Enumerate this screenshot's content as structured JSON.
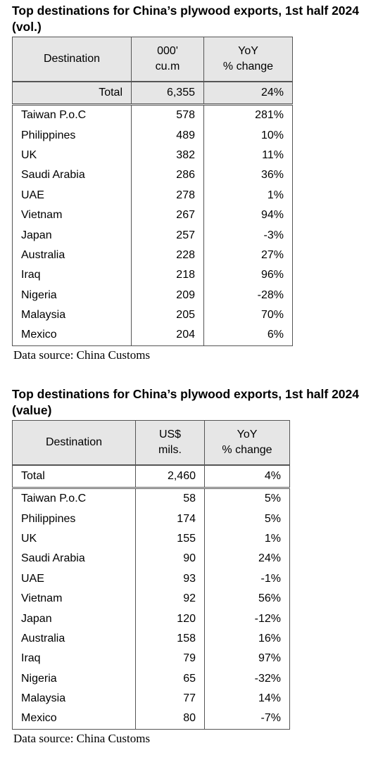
{
  "tables": [
    {
      "title": "Top destinations for China’s plywood exports, 1st half 2024 (vol.)",
      "headers": [
        [
          "Destination"
        ],
        [
          "000'",
          "cu.m"
        ],
        [
          "YoY",
          "% change"
        ]
      ],
      "total": [
        "Total",
        "6,355",
        "24%"
      ],
      "rows": [
        [
          "Taiwan P.o.C",
          "578",
          "281%"
        ],
        [
          "Philippines",
          "489",
          "10%"
        ],
        [
          "UK",
          "382",
          "11%"
        ],
        [
          "Saudi Arabia",
          "286",
          "36%"
        ],
        [
          "UAE",
          "278",
          "1%"
        ],
        [
          "Vietnam",
          "267",
          "94%"
        ],
        [
          "Japan",
          "257",
          "-3%"
        ],
        [
          "Australia",
          "228",
          "27%"
        ],
        [
          "Iraq",
          "218",
          "96%"
        ],
        [
          "Nigeria",
          "209",
          "-28%"
        ],
        [
          "Malaysia",
          "205",
          "70%"
        ],
        [
          "Mexico",
          "204",
          "6%"
        ]
      ],
      "source": "Data source: China Customs"
    },
    {
      "title": "Top destinations for China’s plywood exports, 1st half 2024 (value)",
      "headers": [
        [
          "Destination"
        ],
        [
          "US$",
          "mils."
        ],
        [
          "YoY",
          "% change"
        ]
      ],
      "total": [
        "Total",
        "2,460",
        "4%"
      ],
      "rows": [
        [
          "Taiwan P.o.C",
          "58",
          "5%"
        ],
        [
          "Philippines",
          "174",
          "5%"
        ],
        [
          "UK",
          "155",
          "1%"
        ],
        [
          "Saudi Arabia",
          "90",
          "24%"
        ],
        [
          "UAE",
          "93",
          "-1%"
        ],
        [
          "Vietnam",
          "92",
          "56%"
        ],
        [
          "Japan",
          "120",
          "-12%"
        ],
        [
          "Australia",
          "158",
          "16%"
        ],
        [
          "Iraq",
          "79",
          "97%"
        ],
        [
          "Nigeria",
          "65",
          "-32%"
        ],
        [
          "Malaysia",
          "77",
          "14%"
        ],
        [
          "Mexico",
          "80",
          "-7%"
        ]
      ],
      "source": "Data source: China Customs"
    }
  ]
}
